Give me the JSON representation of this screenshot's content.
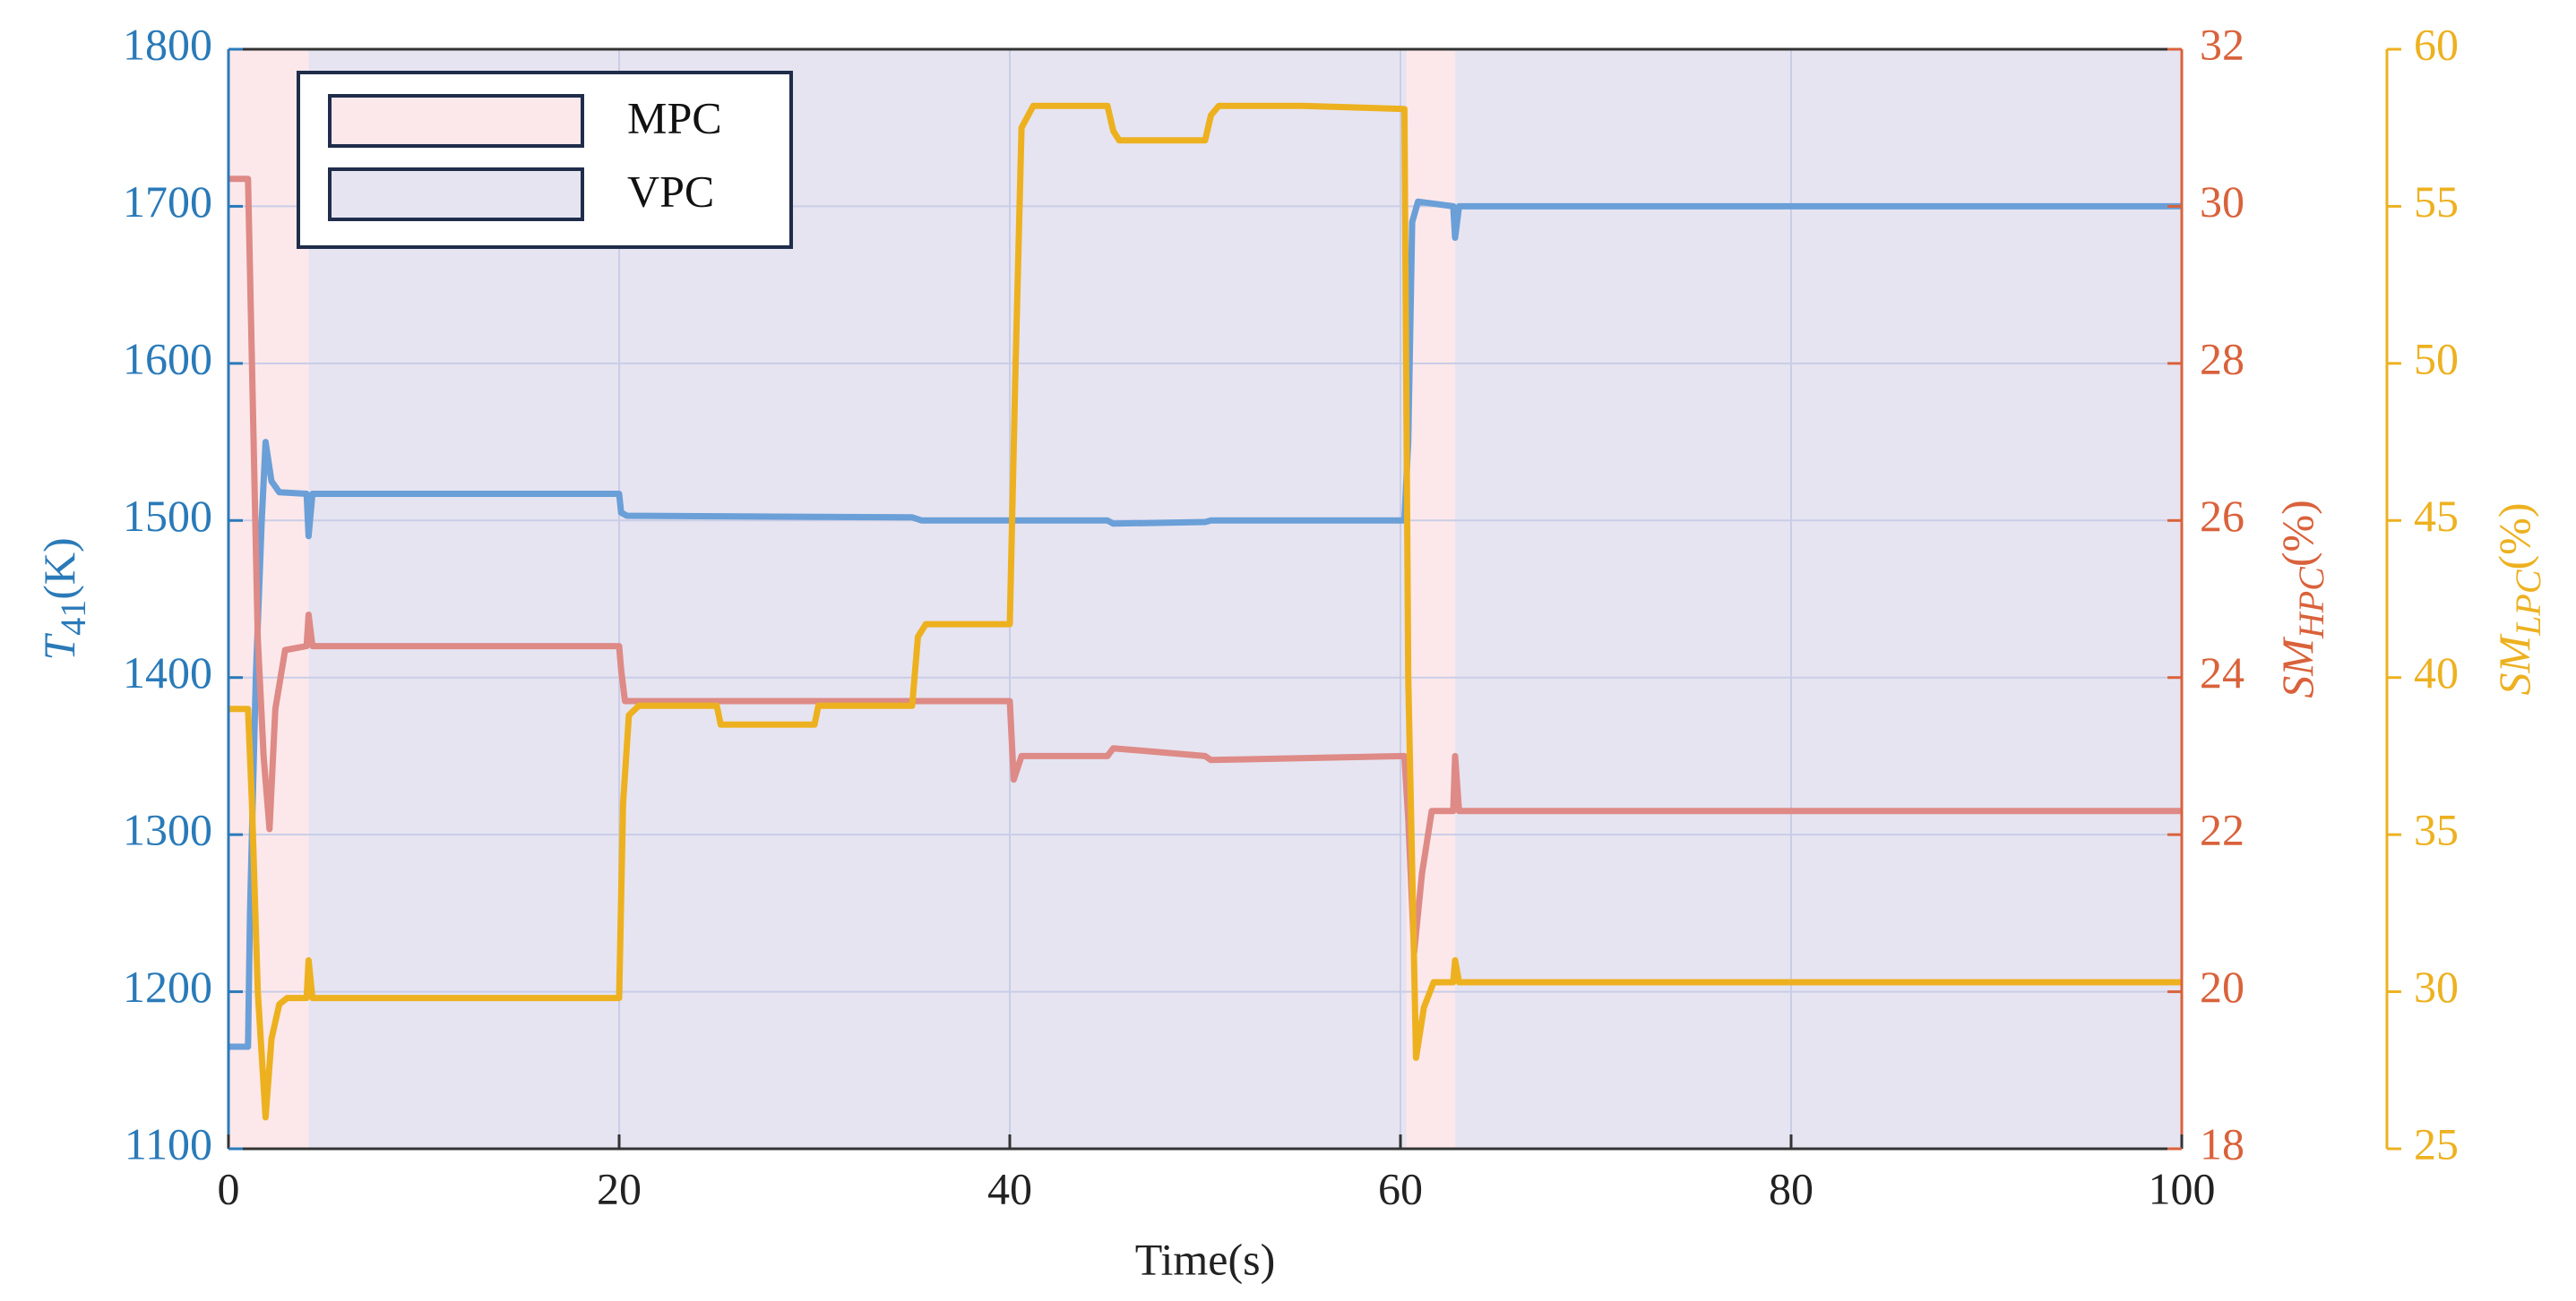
{
  "chart_data": {
    "type": "line",
    "xlabel": "Time(s)",
    "ylabel": {
      "symbol": "T",
      "subscript": "41",
      "unit": "(K)"
    },
    "y2label": {
      "symbol": "SM",
      "subscript": "HPC",
      "unit": "(%)"
    },
    "y3label": {
      "symbol": "SM",
      "subscript": "LPC",
      "unit": "(%)"
    },
    "xlim": [
      0,
      100
    ],
    "xticks": [
      0,
      20,
      40,
      60,
      80,
      100
    ],
    "ylim": [
      1100,
      1800
    ],
    "yticks": [
      1100,
      1200,
      1300,
      1400,
      1500,
      1600,
      1700,
      1800
    ],
    "y2lim": [
      18,
      32
    ],
    "y2ticks": [
      18,
      20,
      22,
      24,
      26,
      28,
      30,
      32
    ],
    "y3lim": [
      25,
      60
    ],
    "y3ticks": [
      25,
      30,
      35,
      40,
      45,
      50,
      55,
      60
    ],
    "axis_colors": {
      "y": "#2a7ab8",
      "y2": "#d9623b",
      "y3": "#edb120"
    },
    "grid": true,
    "legend_location": "upper left",
    "regions": [
      {
        "name": "MPC",
        "color": "#fce8ea",
        "spans": [
          [
            0,
            4.1
          ],
          [
            60.3,
            62.8
          ]
        ]
      },
      {
        "name": "VPC",
        "color": "#e6e4f1",
        "spans": [
          [
            4.1,
            60.3
          ],
          [
            62.8,
            100
          ]
        ]
      }
    ],
    "series": [
      {
        "name": "T41",
        "color": "#6a9fd8",
        "axis": "y",
        "x": [
          0,
          1.0,
          1.1,
          1.4,
          1.7,
          1.9,
          2.2,
          2.6,
          4.0,
          4.1,
          4.3,
          20,
          20.1,
          20.4,
          35,
          35.5,
          45,
          45.3,
          50,
          50.3,
          60.2,
          60.4,
          60.6,
          60.9,
          62.7,
          62.8,
          63.0,
          100
        ],
        "values": [
          1165,
          1165,
          1250,
          1400,
          1500,
          1550,
          1525,
          1518,
          1517,
          1490,
          1517,
          1517,
          1505,
          1503,
          1502,
          1500,
          1500,
          1498,
          1499,
          1500,
          1500,
          1550,
          1690,
          1703,
          1700,
          1680,
          1700,
          1700
        ]
      },
      {
        "name": "SM_HPC",
        "color": "#de8a86",
        "axis": "y2",
        "x": [
          0,
          1.0,
          1.2,
          1.5,
          1.8,
          2.1,
          2.4,
          2.9,
          4.0,
          4.1,
          4.3,
          20,
          20.1,
          20.3,
          40,
          40.2,
          40.6,
          45,
          45.3,
          50,
          50.3,
          60.2,
          60.4,
          60.7,
          61.1,
          61.6,
          62.7,
          62.8,
          63.0,
          100
        ],
        "values": [
          30.35,
          30.35,
          28,
          24.5,
          23,
          22.07,
          23.6,
          24.35,
          24.4,
          24.8,
          24.4,
          24.4,
          24.1,
          23.7,
          23.7,
          22.7,
          23.0,
          23.0,
          23.1,
          23.0,
          22.95,
          23.0,
          22.2,
          20.5,
          21.5,
          22.3,
          22.3,
          23.0,
          22.3,
          22.3
        ]
      },
      {
        "name": "SM_LPC",
        "color": "#edb120",
        "axis": "y3",
        "x": [
          0,
          1.0,
          1.2,
          1.5,
          1.9,
          2.2,
          2.6,
          3.0,
          4.0,
          4.1,
          4.3,
          20,
          20.2,
          20.5,
          21.0,
          25,
          25.2,
          30,
          30.2,
          35,
          35.3,
          35.7,
          40,
          40.3,
          40.6,
          41.2,
          45,
          45.3,
          45.6,
          50,
          50.3,
          50.7,
          55,
          60.2,
          60.4,
          60.8,
          61.2,
          61.7,
          62.7,
          62.8,
          63.0,
          100
        ],
        "values": [
          39,
          39,
          36,
          30,
          26.0,
          28.5,
          29.6,
          29.8,
          29.8,
          31.0,
          29.8,
          29.8,
          36,
          38.8,
          39.1,
          39.1,
          38.5,
          38.5,
          39.1,
          39.1,
          41.3,
          41.7,
          41.7,
          50,
          57.5,
          58.2,
          58.2,
          57.4,
          57.1,
          57.1,
          57.9,
          58.2,
          58.2,
          58.1,
          40,
          27.9,
          29.5,
          30.3,
          30.3,
          31.0,
          30.3,
          30.3
        ]
      }
    ]
  }
}
